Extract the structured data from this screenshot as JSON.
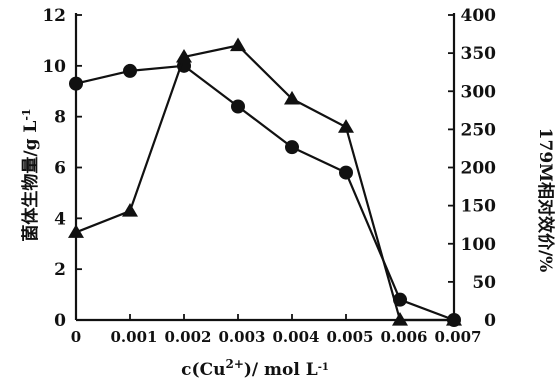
{
  "chart_data": {
    "type": "line",
    "x": [
      0,
      0.001,
      0.002,
      0.003,
      0.004,
      0.005,
      0.006,
      0.007
    ],
    "xticks": [
      "0",
      "0.001",
      "0.002",
      "0.003",
      "0.004",
      "0.005",
      "0.006",
      "0.007"
    ],
    "xlim": [
      0,
      0.007
    ],
    "xlabel_parts": {
      "pre": "c(Cu",
      "sup": "2+",
      "post": ")/ mol L",
      "post_sup": "-1"
    },
    "ylabel_left_parts": {
      "main": "菌体生物量/g L",
      "sup": "-1"
    },
    "ylim_left": [
      0,
      12
    ],
    "yticks_left": [
      "0",
      "2",
      "4",
      "6",
      "8",
      "10",
      "12"
    ],
    "ylabel_right": "179M相对效价/%",
    "ylim_right": [
      0,
      400
    ],
    "yticks_right": [
      "0",
      "50",
      "100",
      "150",
      "200",
      "250",
      "300",
      "350",
      "400"
    ],
    "series": [
      {
        "marker": "circle",
        "axis": "left",
        "values": [
          9.3,
          9.8,
          10.0,
          8.4,
          6.8,
          5.8,
          0.8,
          0.0
        ]
      },
      {
        "marker": "triangle",
        "axis": "right",
        "values": [
          115,
          143,
          345,
          360,
          290,
          253,
          0,
          0
        ]
      }
    ]
  }
}
